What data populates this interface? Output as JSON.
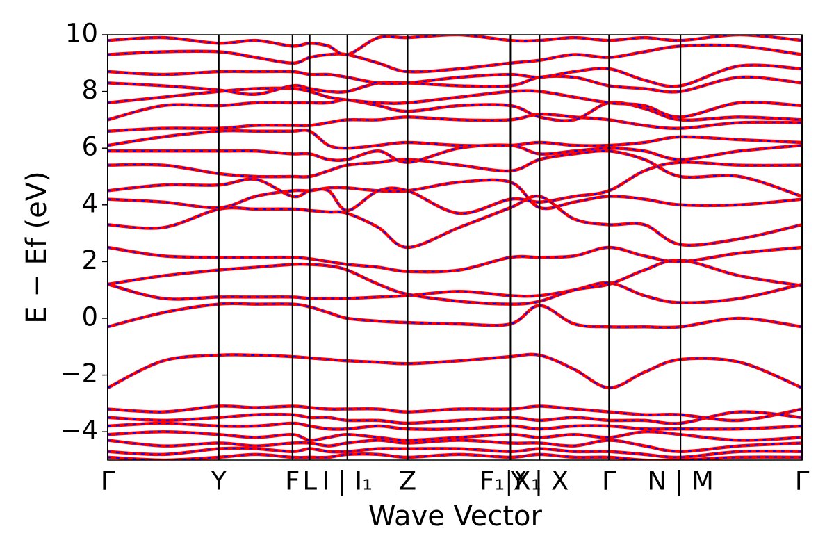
{
  "chart_data": {
    "type": "line",
    "xlabel": "Wave Vector",
    "ylabel": "E − Ef (eV)",
    "xlim": [
      0,
      10
    ],
    "ylim": [
      -5,
      10
    ],
    "xticks": [
      {
        "value": 0,
        "label": "Γ"
      },
      {
        "value": 1.6,
        "label": "Y"
      },
      {
        "value": 2.66,
        "label": "F"
      },
      {
        "value": 2.91,
        "label": "L"
      },
      {
        "value": 3.45,
        "label": "I | I₁"
      },
      {
        "value": 4.32,
        "label": "Z"
      },
      {
        "value": 5.8,
        "label": "F₁|X₁"
      },
      {
        "value": 6.22,
        "label": "Y | X"
      },
      {
        "value": 7.22,
        "label": "Γ"
      },
      {
        "value": 8.25,
        "label": "N | M"
      },
      {
        "value": 10,
        "label": "Γ"
      }
    ],
    "yticks": [
      {
        "value": -4,
        "label": "−4"
      },
      {
        "value": -2,
        "label": "−2"
      },
      0,
      2,
      4,
      6,
      8,
      10
    ],
    "tick_lines": true,
    "line_color": "#ff0000",
    "overlay_color": "#0000ff",
    "overlay_dashed": true,
    "x": [
      0,
      0.8,
      1.6,
      2.13,
      2.66,
      2.91,
      3.18,
      3.45,
      3.9,
      4.32,
      5.06,
      5.8,
      6.22,
      6.72,
      7.22,
      7.73,
      8.25,
      9.1,
      10
    ],
    "series": [
      {
        "values": [
          -2.45,
          -1.5,
          -1.3,
          -1.3,
          -1.35,
          -1.4,
          -1.45,
          -1.5,
          -1.55,
          -1.6,
          -1.5,
          -1.35,
          -1.3,
          -1.8,
          -2.45,
          -1.9,
          -1.45,
          -1.55,
          -2.45
        ]
      },
      {
        "values": [
          -0.3,
          0.2,
          0.5,
          0.5,
          0.5,
          0.4,
          0.2,
          0.0,
          -0.1,
          -0.15,
          -0.2,
          -0.2,
          0.45,
          -0.2,
          -0.3,
          -0.3,
          -0.3,
          0.0,
          -0.3
        ]
      },
      {
        "values": [
          1.2,
          0.7,
          0.75,
          0.75,
          0.75,
          0.7,
          0.7,
          0.7,
          0.75,
          0.8,
          0.95,
          0.8,
          0.8,
          1.0,
          1.25,
          0.8,
          0.55,
          0.7,
          1.2
        ]
      },
      {
        "values": [
          1.2,
          1.5,
          1.7,
          1.8,
          1.9,
          1.9,
          1.85,
          1.7,
          1.2,
          0.85,
          0.6,
          0.5,
          0.6,
          1.0,
          1.2,
          1.7,
          2.05,
          1.5,
          1.15
        ]
      },
      {
        "values": [
          2.5,
          2.2,
          2.15,
          2.15,
          2.15,
          2.1,
          2.0,
          1.9,
          1.8,
          1.65,
          1.7,
          2.15,
          2.15,
          2.2,
          2.5,
          2.2,
          2.0,
          2.3,
          2.5
        ]
      },
      {
        "values": [
          3.3,
          3.2,
          3.85,
          3.85,
          3.85,
          3.8,
          3.75,
          3.7,
          3.2,
          2.5,
          3.2,
          3.9,
          4.3,
          3.5,
          3.3,
          3.3,
          2.6,
          2.8,
          3.3
        ]
      },
      {
        "values": [
          4.2,
          4.1,
          3.9,
          4.3,
          4.5,
          4.5,
          4.6,
          4.6,
          4.5,
          4.5,
          4.8,
          4.8,
          3.9,
          4.1,
          4.3,
          4.2,
          4.0,
          4.0,
          4.2
        ]
      },
      {
        "values": [
          4.5,
          4.7,
          4.7,
          4.9,
          4.3,
          4.5,
          4.5,
          3.8,
          4.5,
          4.5,
          3.7,
          4.2,
          4.1,
          4.3,
          4.5,
          5.2,
          5.5,
          5.4,
          5.4
        ]
      },
      {
        "values": [
          5.4,
          5.4,
          5.1,
          5.0,
          5.0,
          5.0,
          5.2,
          5.4,
          5.5,
          5.6,
          5.4,
          5.2,
          5.6,
          5.8,
          5.9,
          5.6,
          5.0,
          5.0,
          4.3
        ]
      },
      {
        "values": [
          5.9,
          5.9,
          5.9,
          5.9,
          5.8,
          5.8,
          5.6,
          5.6,
          5.9,
          5.5,
          6.0,
          6.1,
          5.8,
          5.9,
          6.0,
          5.9,
          5.6,
          5.9,
          6.1
        ]
      },
      {
        "values": [
          6.1,
          6.4,
          6.6,
          6.6,
          6.6,
          6.6,
          6.1,
          6.0,
          6.1,
          6.2,
          6.1,
          6.1,
          6.2,
          6.1,
          6.1,
          6.2,
          6.4,
          6.3,
          6.2
        ]
      },
      {
        "values": [
          6.6,
          6.7,
          6.7,
          6.8,
          6.8,
          6.8,
          6.9,
          7.0,
          7.0,
          7.1,
          7.0,
          7.0,
          7.2,
          7.1,
          7.0,
          6.8,
          6.7,
          6.9,
          6.9
        ]
      },
      {
        "values": [
          7.0,
          7.5,
          7.5,
          7.6,
          7.6,
          7.6,
          7.6,
          7.7,
          7.5,
          7.3,
          7.5,
          7.5,
          7.1,
          7.0,
          7.6,
          7.4,
          7.0,
          7.1,
          7.0
        ]
      },
      {
        "values": [
          7.6,
          7.8,
          8.0,
          8.1,
          8.1,
          8.0,
          7.8,
          7.7,
          7.6,
          7.6,
          7.8,
          8.0,
          8.0,
          7.8,
          7.6,
          7.5,
          7.1,
          7.6,
          7.5
        ]
      },
      {
        "values": [
          8.3,
          8.2,
          8.05,
          7.9,
          8.2,
          8.1,
          8.0,
          8.0,
          8.3,
          8.3,
          8.2,
          8.2,
          8.5,
          8.5,
          8.2,
          8.1,
          8.0,
          8.5,
          8.3
        ]
      },
      {
        "values": [
          8.7,
          8.6,
          8.7,
          8.7,
          8.7,
          8.6,
          8.6,
          8.5,
          8.3,
          8.3,
          8.5,
          8.6,
          8.5,
          8.7,
          8.8,
          8.4,
          8.2,
          8.9,
          8.8
        ]
      },
      {
        "values": [
          9.3,
          9.4,
          9.4,
          9.2,
          9.0,
          9.2,
          9.3,
          9.3,
          9.0,
          8.7,
          8.8,
          9.0,
          9.1,
          9.3,
          9.2,
          9.4,
          9.6,
          9.6,
          9.3
        ]
      },
      {
        "values": [
          9.8,
          9.9,
          9.7,
          9.8,
          9.6,
          9.7,
          9.6,
          9.3,
          9.9,
          9.9,
          10.0,
          9.8,
          9.8,
          9.9,
          9.8,
          9.9,
          9.8,
          10.0,
          9.8
        ]
      },
      {
        "values": [
          -3.2,
          -3.3,
          -3.1,
          -3.15,
          -3.1,
          -3.15,
          -3.2,
          -3.2,
          -3.2,
          -3.3,
          -3.2,
          -3.2,
          -3.1,
          -3.2,
          -3.3,
          -3.4,
          -3.4,
          -3.6,
          -3.2
        ]
      },
      {
        "values": [
          -3.5,
          -3.6,
          -3.5,
          -3.4,
          -3.4,
          -3.5,
          -3.5,
          -3.6,
          -3.6,
          -3.7,
          -3.6,
          -3.5,
          -3.6,
          -3.5,
          -3.6,
          -3.6,
          -3.7,
          -3.3,
          -3.5
        ]
      },
      {
        "values": [
          -3.8,
          -3.7,
          -3.8,
          -3.8,
          -3.7,
          -3.8,
          -3.9,
          -3.9,
          -3.8,
          -3.9,
          -3.9,
          -3.8,
          -3.9,
          -3.8,
          -3.8,
          -3.9,
          -3.9,
          -3.9,
          -3.8
        ]
      },
      {
        "values": [
          -4.1,
          -4.0,
          -4.1,
          -4.2,
          -4.1,
          -4.3,
          -4.2,
          -4.1,
          -4.2,
          -4.3,
          -4.2,
          -4.1,
          -4.2,
          -4.1,
          -4.2,
          -4.0,
          -4.1,
          -4.3,
          -4.2
        ]
      },
      {
        "values": [
          -4.3,
          -4.5,
          -4.4,
          -4.5,
          -4.4,
          -4.4,
          -4.5,
          -4.4,
          -4.3,
          -4.4,
          -4.3,
          -4.4,
          -4.4,
          -4.5,
          -4.3,
          -4.5,
          -4.7,
          -4.5,
          -4.4
        ]
      },
      {
        "values": [
          -4.7,
          -4.8,
          -4.6,
          -4.6,
          -4.7,
          -4.6,
          -4.7,
          -4.7,
          -4.6,
          -4.6,
          -4.6,
          -4.7,
          -4.6,
          -4.7,
          -4.7,
          -4.8,
          -4.9,
          -4.7,
          -4.7
        ]
      },
      {
        "values": [
          -4.9,
          -5.0,
          -4.9,
          -4.8,
          -4.9,
          -4.9,
          -4.9,
          -4.8,
          -4.8,
          -4.9,
          -4.8,
          -4.9,
          -4.8,
          -4.9,
          -4.9,
          -5.0,
          -5.0,
          -4.9,
          -4.9
        ]
      }
    ]
  }
}
